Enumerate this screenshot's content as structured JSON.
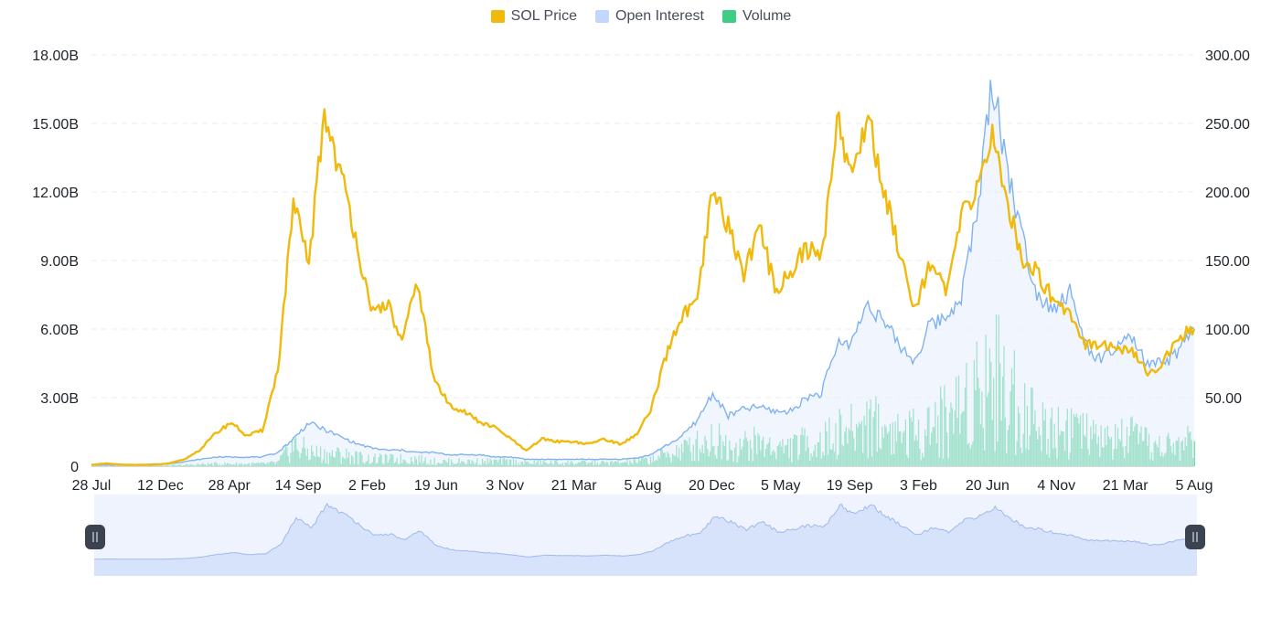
{
  "legend": [
    {
      "label": "SOL Price",
      "color": "#f0b90b"
    },
    {
      "label": "Open Interest",
      "color": "#c3d6ff"
    },
    {
      "label": "Volume",
      "color": "#3fcc85"
    }
  ],
  "chart_data": {
    "type": "line",
    "title": "",
    "left_axis": {
      "ticks": [
        "0",
        "3.00B",
        "6.00B",
        "9.00B",
        "12.00B",
        "15.00B",
        "18.00B"
      ],
      "range": [
        0,
        18000000000
      ]
    },
    "right_axis": {
      "ticks": [
        "50.00",
        "100.00",
        "150.00",
        "200.00",
        "250.00",
        "300.00"
      ],
      "range": [
        0,
        300
      ]
    },
    "x_ticks": [
      "28 Jul",
      "12 Dec",
      "28 Apr",
      "14 Sep",
      "2 Feb",
      "19 Jun",
      "3 Nov",
      "21 Mar",
      "5 Aug",
      "20 Dec",
      "5 May",
      "19 Sep",
      "3 Feb",
      "20 Jun",
      "4 Nov",
      "21 Mar",
      "5 Aug"
    ],
    "grid": true,
    "legend_position": "top-center",
    "series": [
      {
        "name": "SOL Price",
        "axis": "right",
        "color": "#f0b90b",
        "values": [
          1,
          2,
          1,
          1,
          1,
          2,
          5,
          12,
          24,
          32,
          22,
          26,
          70,
          190,
          148,
          258,
          215,
          170,
          110,
          120,
          90,
          135,
          65,
          45,
          40,
          32,
          28,
          20,
          11,
          20,
          18,
          18,
          16,
          20,
          16,
          22,
          40,
          80,
          110,
          118,
          201,
          175,
          140,
          175,
          130,
          140,
          160,
          150,
          255,
          210,
          258,
          200,
          160,
          115,
          150,
          125,
          180,
          205,
          240,
          190,
          150,
          140,
          120,
          113,
          89,
          90,
          85,
          83,
          68,
          75,
          95,
          100
        ]
      },
      {
        "name": "Open Interest",
        "axis": "left",
        "unit": "B",
        "values": [
          0.05,
          0.05,
          0.05,
          0.05,
          0.1,
          0.1,
          0.2,
          0.3,
          0.4,
          0.4,
          0.4,
          0.4,
          0.6,
          1.2,
          1.9,
          1.6,
          1.3,
          1.0,
          0.8,
          0.7,
          0.7,
          0.6,
          0.6,
          0.5,
          0.5,
          0.5,
          0.4,
          0.4,
          0.3,
          0.3,
          0.3,
          0.3,
          0.3,
          0.3,
          0.3,
          0.35,
          0.5,
          0.9,
          1.3,
          2.0,
          3.2,
          2.2,
          2.5,
          2.6,
          2.4,
          2.4,
          3.0,
          3.2,
          5.3,
          5.5,
          7.2,
          6.3,
          5.3,
          4.6,
          6.2,
          6.5,
          7.5,
          11.0,
          17.0,
          13.0,
          9.8,
          7.4,
          7.0,
          7.6,
          5.3,
          4.6,
          5.2,
          5.6,
          4.4,
          4.5,
          5.0,
          6.0
        ]
      },
      {
        "name": "Volume",
        "axis": "left",
        "unit": "B",
        "values": [
          0.02,
          0.02,
          0.02,
          0.02,
          0.03,
          0.03,
          0.05,
          0.08,
          0.1,
          0.1,
          0.1,
          0.1,
          0.15,
          0.9,
          0.6,
          0.5,
          0.5,
          0.4,
          0.3,
          0.3,
          0.3,
          0.3,
          0.2,
          0.2,
          0.2,
          0.2,
          0.2,
          0.2,
          0.15,
          0.15,
          0.15,
          0.15,
          0.15,
          0.15,
          0.15,
          0.2,
          0.3,
          0.5,
          0.7,
          0.9,
          1.2,
          0.9,
          0.9,
          1.0,
          0.8,
          0.8,
          1.0,
          1.0,
          1.4,
          1.5,
          2.0,
          1.6,
          1.5,
          1.4,
          1.8,
          2.0,
          2.6,
          3.4,
          4.0,
          3.2,
          2.4,
          1.8,
          1.6,
          1.8,
          1.3,
          1.1,
          1.1,
          1.2,
          0.9,
          0.8,
          0.9,
          1.1
        ]
      }
    ]
  }
}
